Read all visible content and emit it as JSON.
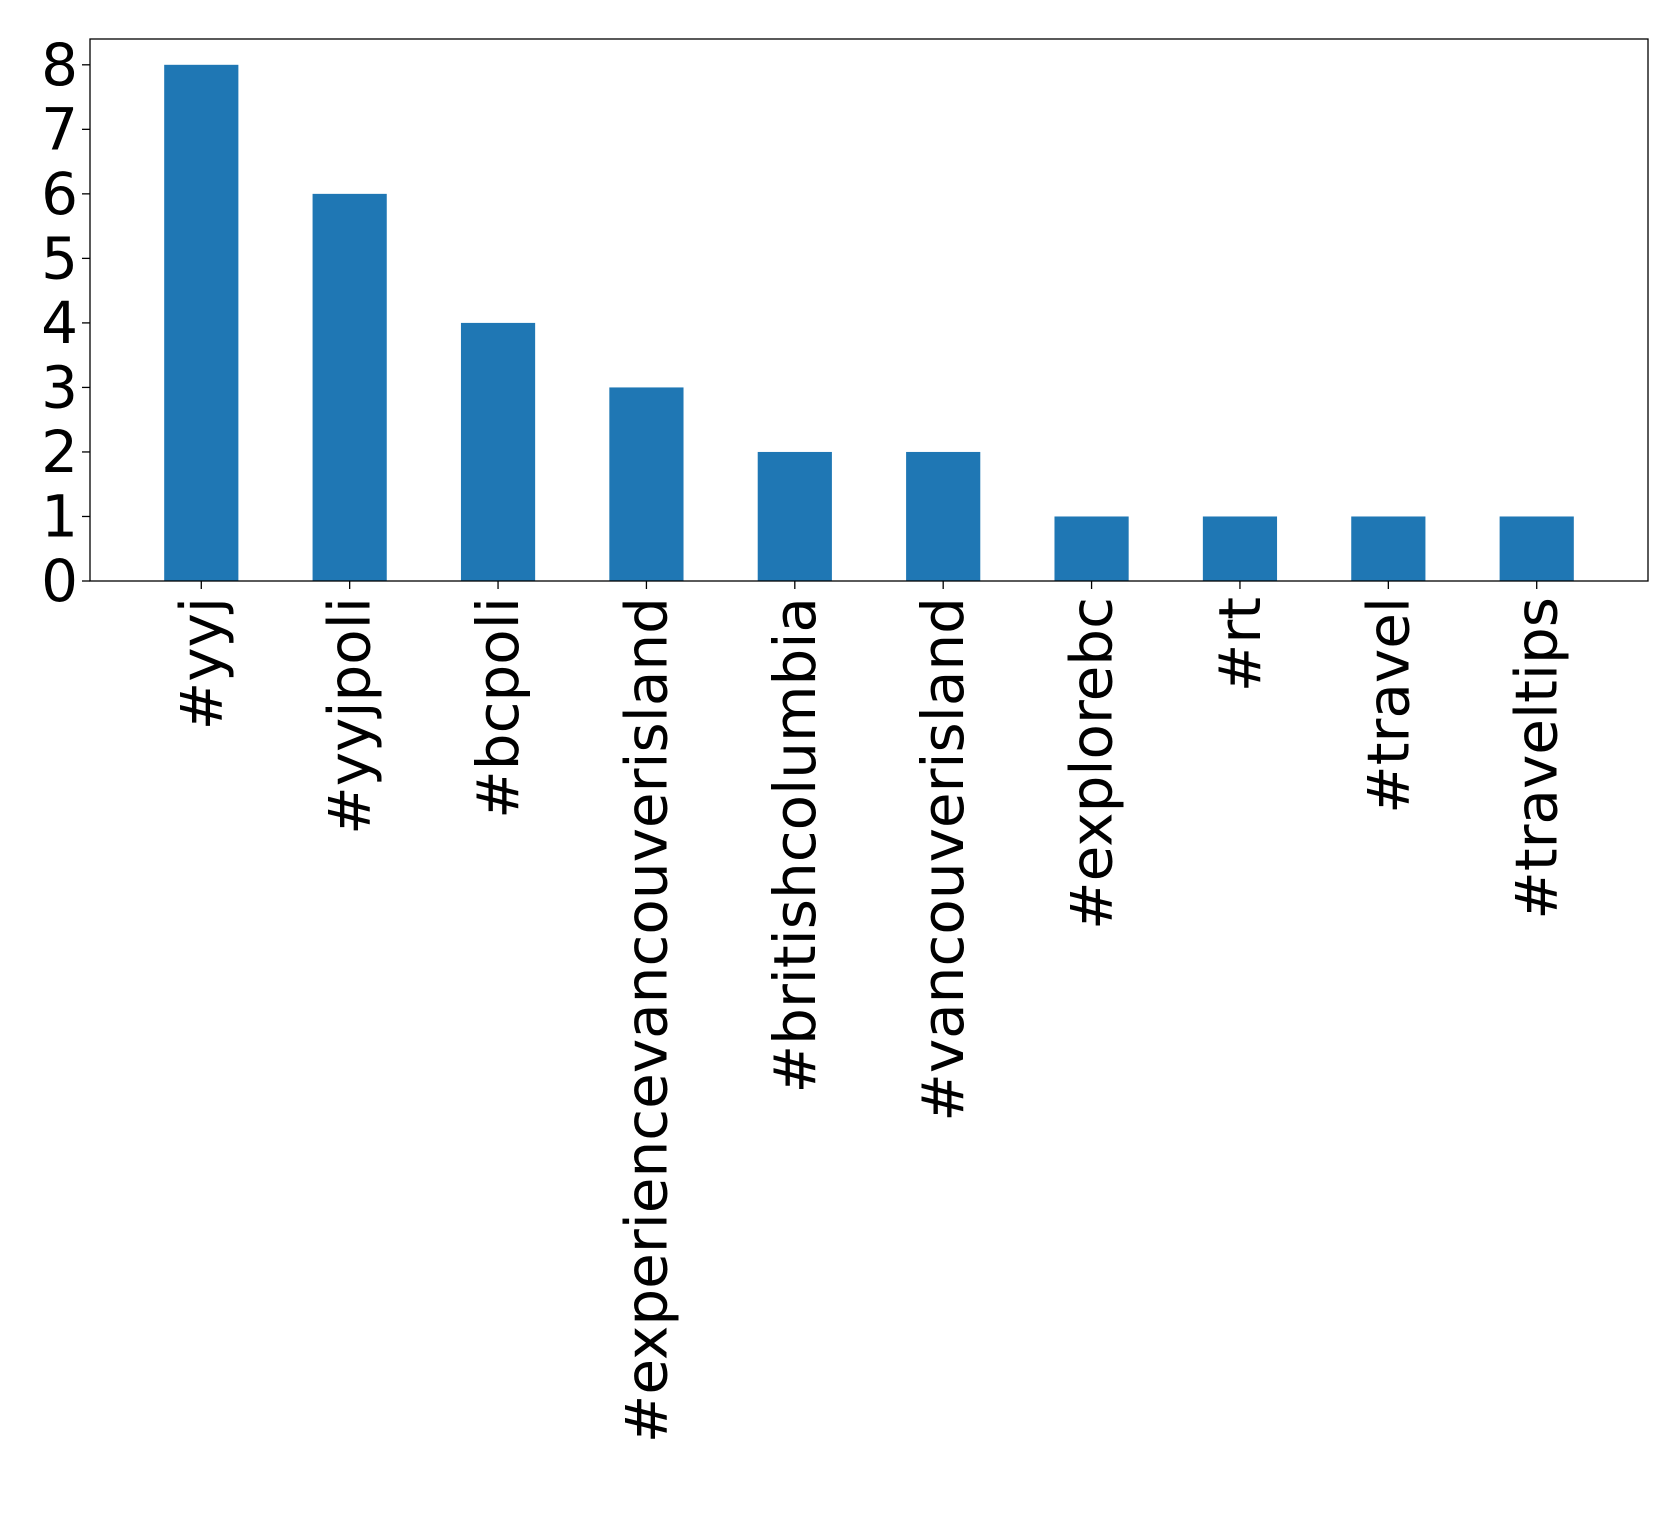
{
  "chart_data": {
    "type": "bar",
    "title": "",
    "xlabel": "",
    "ylabel": "",
    "categories": [
      "#yyj",
      "#yyjpoli",
      "#bcpoli",
      "#experiencevancouverisland",
      "#britishcolumbia",
      "#vancouverisland",
      "#explorebc",
      "#rt",
      "#travel",
      "#traveltips"
    ],
    "values": [
      8,
      6,
      4,
      3,
      2,
      2,
      1,
      1,
      1,
      1
    ],
    "ylim": [
      0,
      8.4
    ],
    "yticks": [
      "0",
      "1",
      "2",
      "3",
      "4",
      "5",
      "6",
      "7",
      "8"
    ],
    "bar_color": "#1f77b4",
    "grid": false,
    "legend": "none",
    "x_tick_rotation": "vertical"
  }
}
